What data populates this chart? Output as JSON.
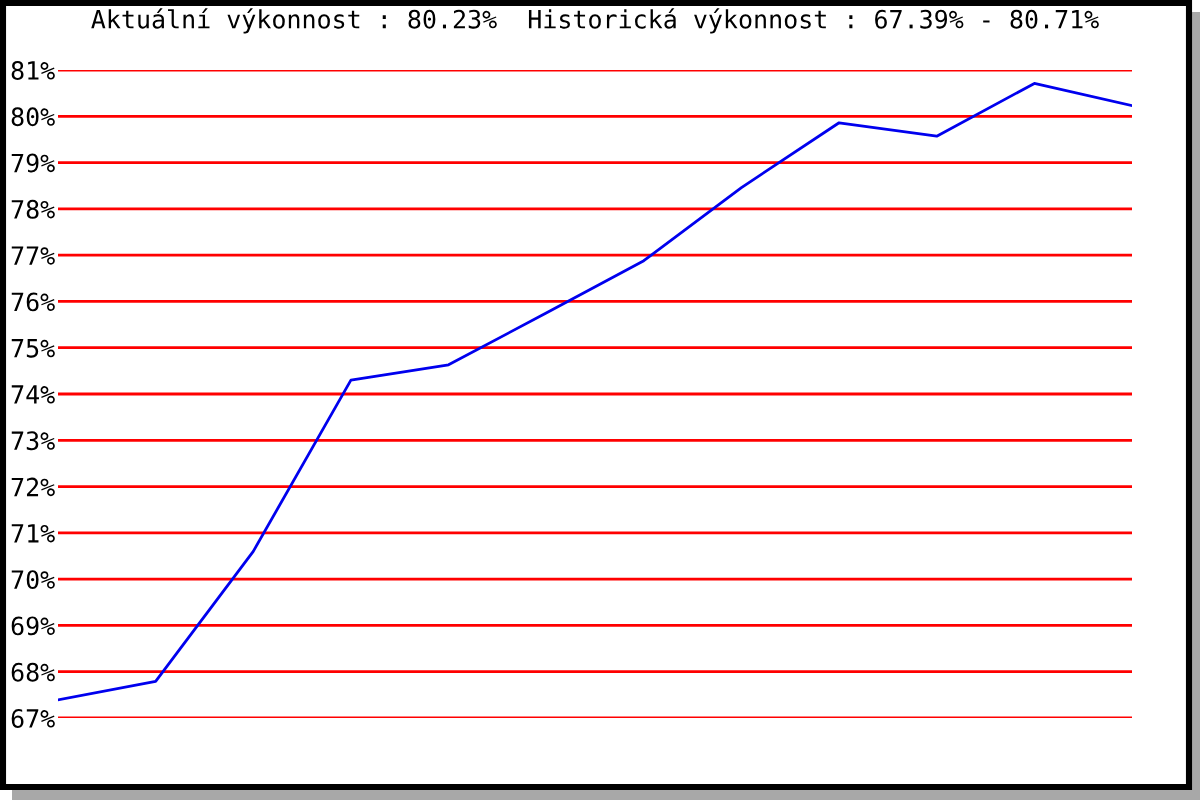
{
  "chart_data": {
    "type": "line",
    "title": "Aktuální výkonnost : 80.23%  Historická výkonnost : 67.39% - 80.71%",
    "categories": [
      null,
      null,
      null,
      null,
      null,
      null,
      null,
      null,
      null,
      null,
      null,
      null
    ],
    "series": [
      {
        "color": "#0000ee",
        "values": [
          67.39,
          67.79,
          70.6,
          74.3,
          74.63,
          75.75,
          76.88,
          78.46,
          79.86,
          79.57,
          80.71,
          80.23
        ]
      }
    ],
    "ylim": [
      67,
      81
    ],
    "yticks": [
      {
        "value": 67,
        "label": "67%"
      },
      {
        "value": 68,
        "label": "68%"
      },
      {
        "value": 69,
        "label": "69%"
      },
      {
        "value": 70,
        "label": "70%"
      },
      {
        "value": 71,
        "label": "71%"
      },
      {
        "value": 72,
        "label": "72%"
      },
      {
        "value": 73,
        "label": "73%"
      },
      {
        "value": 74,
        "label": "74%"
      },
      {
        "value": 75,
        "label": "75%"
      },
      {
        "value": 76,
        "label": "76%"
      },
      {
        "value": 77,
        "label": "77%"
      },
      {
        "value": 78,
        "label": "78%"
      },
      {
        "value": 79,
        "label": "79%"
      },
      {
        "value": 80,
        "label": "80%"
      },
      {
        "value": 81,
        "label": "81%"
      }
    ],
    "grid": "y",
    "marker": "none",
    "line_style": "solid",
    "tick_labels": "y"
  }
}
